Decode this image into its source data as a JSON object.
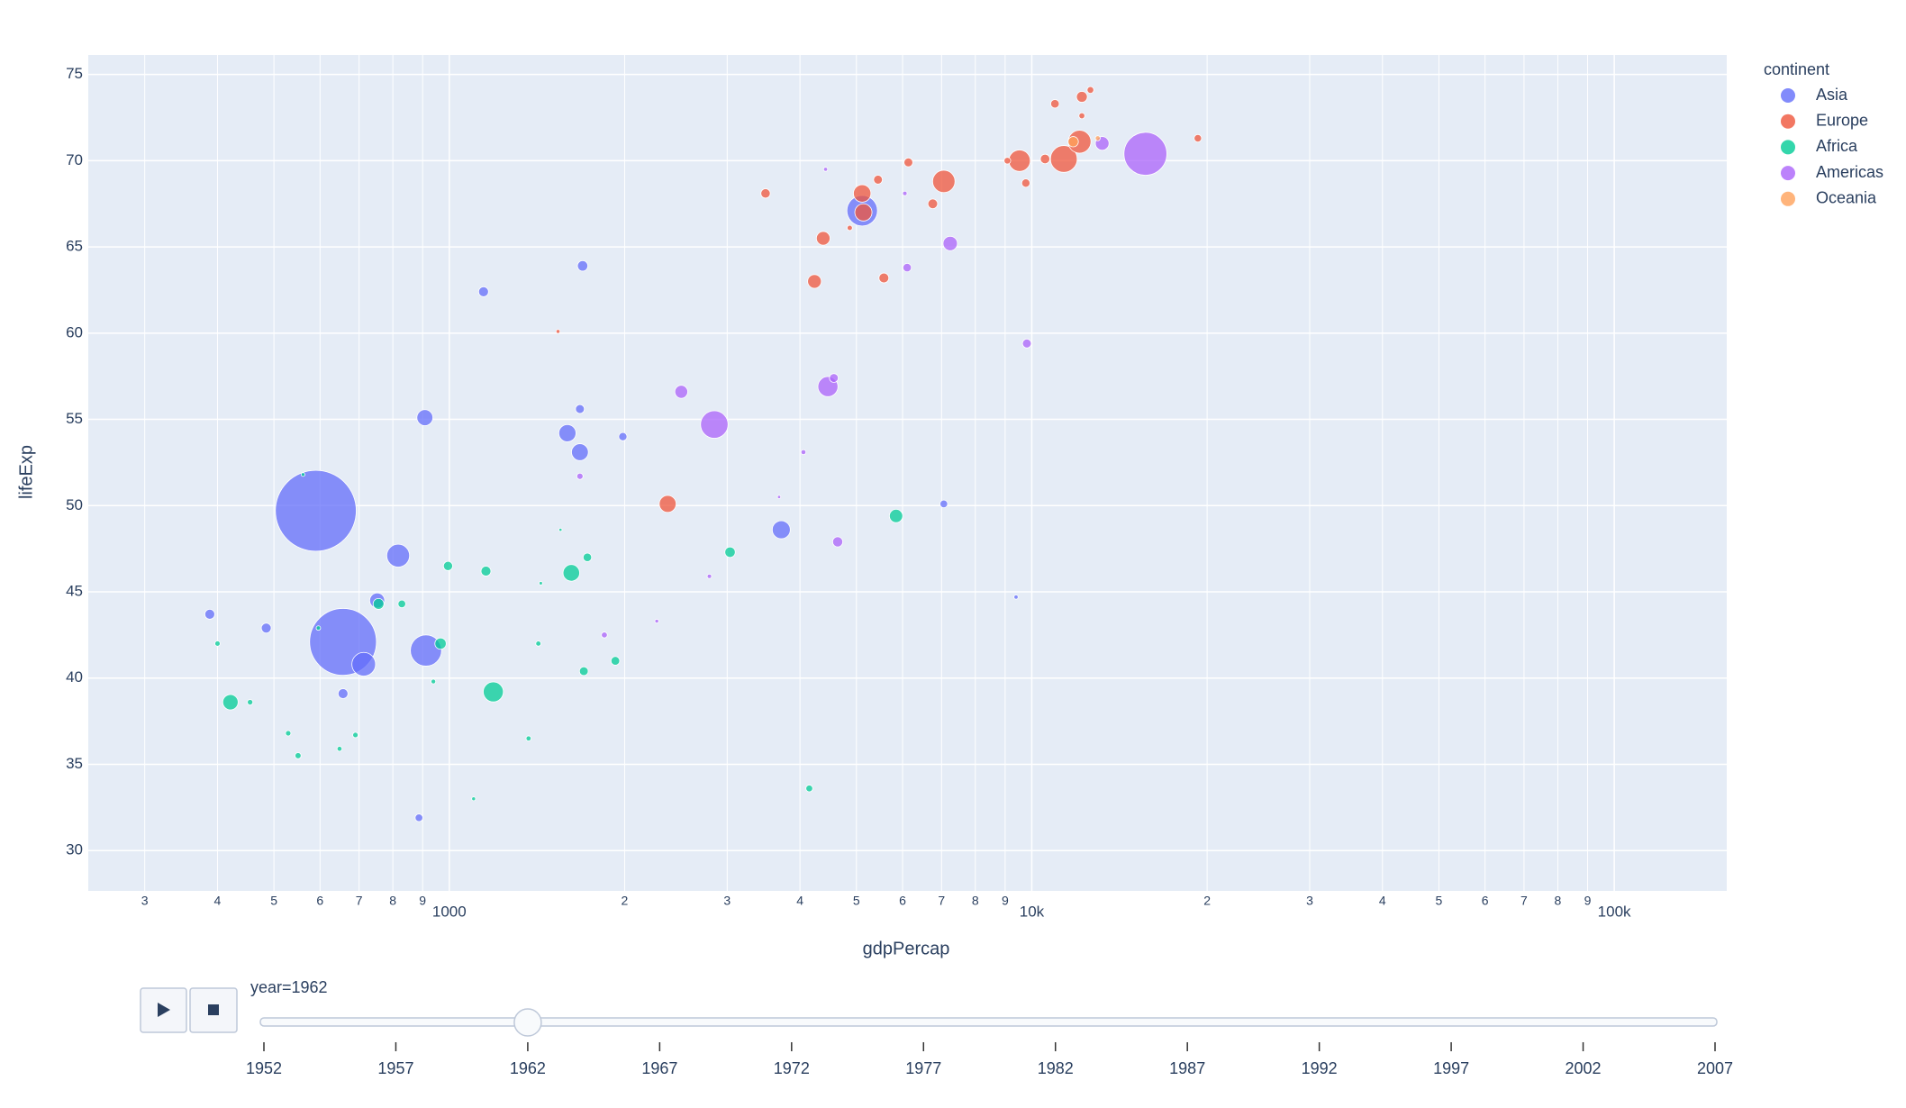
{
  "chart_data": {
    "type": "scatter",
    "xlabel": "gdpPercap",
    "ylabel": "lifeExp",
    "legend_title": "continent",
    "legend_position": "right",
    "xlog": true,
    "grid": true,
    "xlim": [
      240,
      156000
    ],
    "ylim": [
      27.66,
      76.13
    ],
    "yticks": [
      30,
      35,
      40,
      45,
      50,
      55,
      60,
      65,
      70,
      75
    ],
    "xticks": [
      {
        "value": 300,
        "label": "3"
      },
      {
        "value": 400,
        "label": "4"
      },
      {
        "value": 500,
        "label": "5"
      },
      {
        "value": 600,
        "label": "6"
      },
      {
        "value": 700,
        "label": "7"
      },
      {
        "value": 800,
        "label": "8"
      },
      {
        "value": 900,
        "label": "9"
      },
      1000,
      {
        "value": 2000,
        "label": "2"
      },
      {
        "value": 3000,
        "label": "3"
      },
      {
        "value": 4000,
        "label": "4"
      },
      {
        "value": 5000,
        "label": "5"
      },
      {
        "value": 6000,
        "label": "6"
      },
      {
        "value": 7000,
        "label": "7"
      },
      {
        "value": 8000,
        "label": "8"
      },
      {
        "value": 9000,
        "label": "9"
      },
      {
        "value": 10000,
        "label": "10k"
      },
      {
        "value": 20000,
        "label": "2"
      },
      {
        "value": 30000,
        "label": "3"
      },
      {
        "value": 40000,
        "label": "4"
      },
      {
        "value": 50000,
        "label": "5"
      },
      {
        "value": 60000,
        "label": "6"
      },
      {
        "value": 70000,
        "label": "7"
      },
      {
        "value": 80000,
        "label": "8"
      },
      {
        "value": 90000,
        "label": "9"
      },
      {
        "value": 100000,
        "label": "100k"
      }
    ],
    "series": [
      {
        "name": "Asia",
        "color": "#636efa",
        "x": [
          590,
          657,
          912,
          817,
          713,
          5115,
          752,
          1676,
          1595,
          908,
          388,
          3715,
          657,
          887,
          1145,
          1694,
          1676,
          1986,
          7063,
          9397,
          485
        ],
        "values": [
          49.7,
          42.1,
          41.6,
          47.1,
          40.8,
          67.1,
          44.5,
          53.1,
          54.2,
          55.1,
          43.7,
          48.6,
          39.1,
          31.9,
          62.4,
          63.9,
          55.6,
          54.0,
          50.1,
          44.7,
          42.9
        ],
        "sizes": [
          665,
          454,
          99,
          53,
          57,
          95,
          23,
          29,
          30,
          26,
          10,
          33,
          10,
          6,
          10,
          11,
          8,
          7,
          6,
          1.8,
          10
        ]
      },
      {
        "name": "Europe",
        "color": "#EF553B",
        "x": [
          11350,
          12080,
          9528,
          7063,
          5115,
          5140,
          2371,
          4385,
          4236,
          3491,
          12190,
          10960,
          19280,
          5445,
          9768,
          6761,
          5573,
          1537,
          10540,
          12610,
          12190,
          4870,
          6140,
          9080
        ],
        "values": [
          70.1,
          71.1,
          70.0,
          68.8,
          68.1,
          67.0,
          50.1,
          65.5,
          63.0,
          68.1,
          73.7,
          73.3,
          71.3,
          68.9,
          68.7,
          67.5,
          63.2,
          60.1,
          70.1,
          74.1,
          72.6,
          66.1,
          69.9,
          70.0
        ],
        "sizes": [
          73,
          53,
          47,
          51,
          31,
          30,
          29,
          19,
          19,
          9,
          12,
          7.5,
          5.7,
          8,
          7,
          9.6,
          10,
          1.6,
          9.2,
          4.6,
          3.6,
          2.8,
          8,
          4.5
        ]
      },
      {
        "name": "Africa",
        "color": "#00cc96",
        "x": [
          1190,
          1620,
          421,
          5848,
          966,
          3034,
          756,
          829,
          995,
          1156,
          1726,
          1928,
          1702,
          550,
          529,
          690,
          648,
          1368,
          1101,
          4150,
          1422,
          939,
          561,
          1552,
          1436,
          400,
          455,
          596
        ],
        "values": [
          39.2,
          46.1,
          38.6,
          49.4,
          42.0,
          47.3,
          44.3,
          44.3,
          46.5,
          46.2,
          47.0,
          41.0,
          40.4,
          35.5,
          36.8,
          36.7,
          35.9,
          36.5,
          33.0,
          33.6,
          42.0,
          39.8,
          51.8,
          48.6,
          45.5,
          42.0,
          38.6,
          42.9
        ],
        "sizes": [
          41,
          28,
          24,
          18,
          13,
          11,
          12,
          6,
          8.7,
          10,
          7.4,
          7.7,
          7.8,
          3.8,
          3,
          3,
          2.5,
          2.6,
          1.5,
          4.8,
          2.7,
          2.2,
          1.4,
          1,
          1.2,
          2.8,
          3.1,
          2
        ]
      },
      {
        "name": "Americas",
        "color": "#ab63fa",
        "x": [
          15670,
          2851,
          4467,
          7244,
          13210,
          2502,
          9808,
          4643,
          4573,
          6110,
          1676,
          1846,
          2271,
          2796,
          4055,
          3683,
          4426,
          6055
        ],
        "values": [
          70.4,
          54.7,
          56.9,
          65.2,
          71.0,
          56.6,
          59.4,
          47.9,
          57.4,
          63.8,
          51.7,
          42.5,
          43.3,
          45.9,
          53.1,
          50.5,
          69.5,
          68.1
        ],
        "sizes": [
          187,
          77,
          41,
          21,
          19,
          17,
          8,
          10.5,
          7.9,
          7.3,
          4,
          3.6,
          1.5,
          2,
          2.5,
          1.1,
          1.7,
          2
        ]
      },
      {
        "name": "Oceania",
        "color": "#FFA15A",
        "x": [
          11780,
          12980
        ],
        "values": [
          71.1,
          71.3
        ],
        "sizes": [
          10.8,
          2.5
        ]
      }
    ],
    "slider": {
      "label": "year=1962",
      "value": 1962,
      "steps": [
        1952,
        1957,
        1962,
        1967,
        1972,
        1977,
        1982,
        1987,
        1992,
        1997,
        2002,
        2007
      ]
    }
  }
}
